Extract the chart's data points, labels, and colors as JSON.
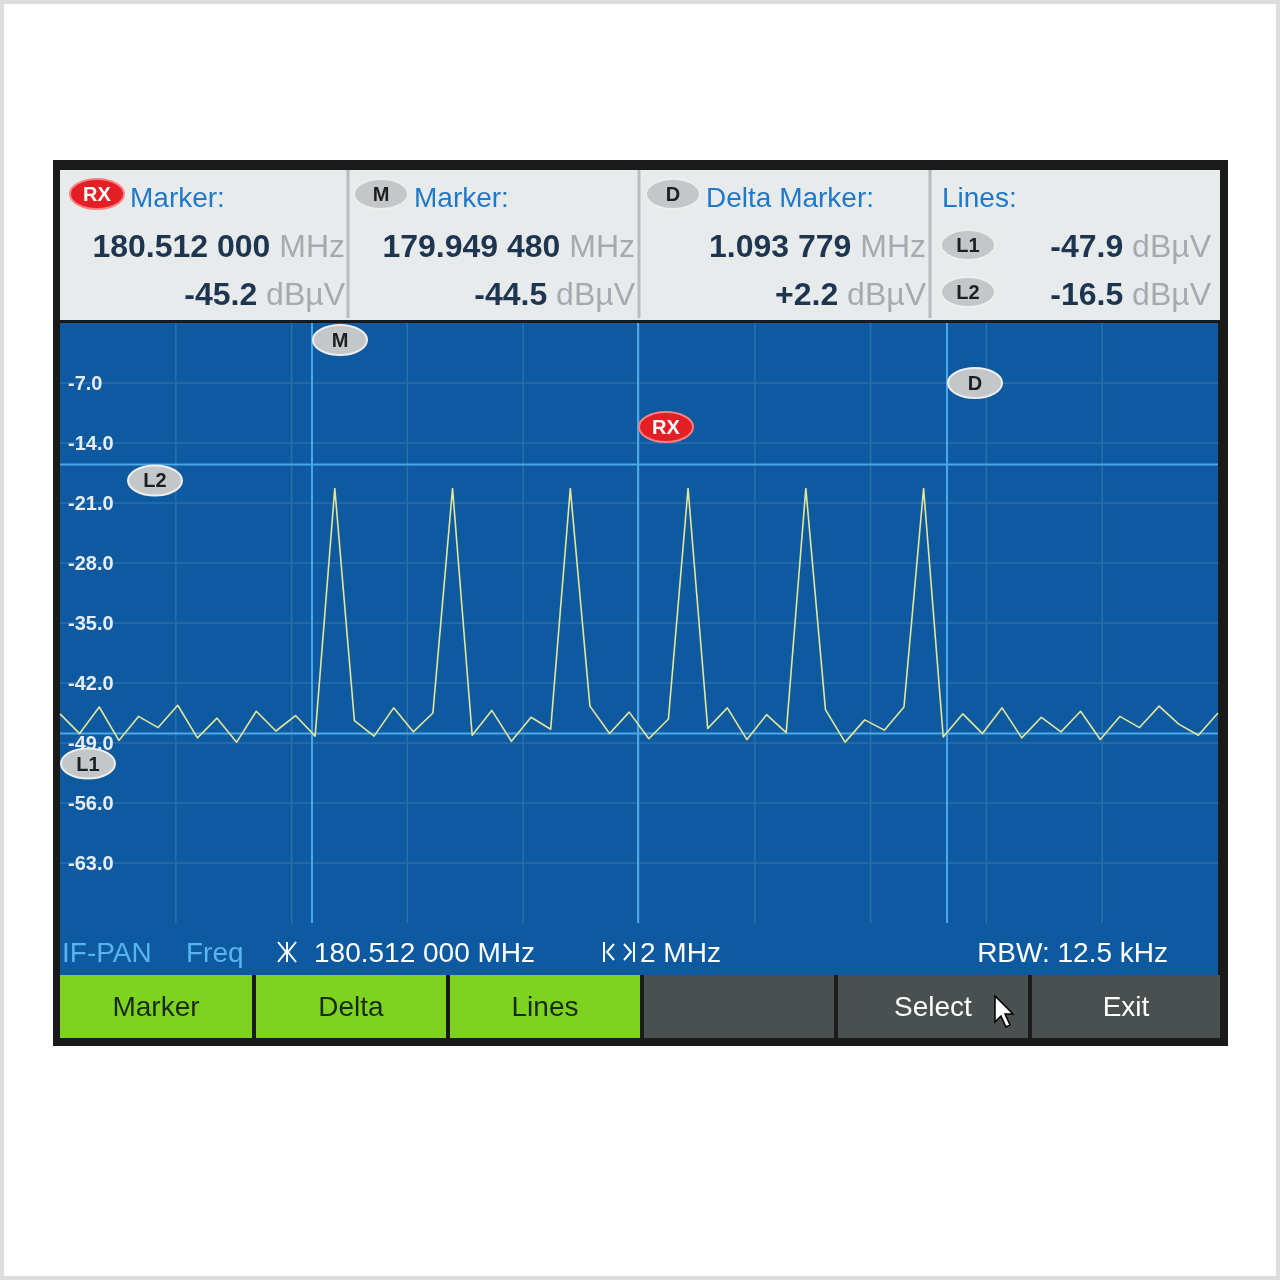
{
  "chart_data": {
    "type": "line",
    "categories": [
      null,
      null,
      null,
      null,
      null,
      null,
      null,
      null,
      null,
      null,
      null,
      null,
      null,
      null,
      null,
      null,
      null,
      null,
      null,
      null,
      null,
      null,
      null,
      null,
      null,
      null,
      null,
      null,
      null,
      null,
      null,
      null,
      null,
      null,
      null,
      null,
      null,
      null,
      null,
      null,
      null,
      null,
      null,
      null,
      null,
      null,
      null,
      null,
      null,
      null,
      null,
      null,
      null,
      null,
      null,
      null,
      null,
      null,
      null,
      null
    ],
    "series": [
      {
        "color": "#e4e69a",
        "values": [
          -45.6,
          -47.9,
          -44.8,
          -48.7,
          -45.9,
          -47.2,
          -44.6,
          -48.4,
          -46.1,
          -48.9,
          -45.3,
          -47.6,
          -45.8,
          -48.2,
          -19.3,
          -46.4,
          -48.2,
          -44.9,
          -47.7,
          -45.5,
          -19.3,
          -48.1,
          -45.2,
          -48.8,
          -46.0,
          -47.4,
          -19.3,
          -44.7,
          -47.9,
          -45.4,
          -48.5,
          -46.2,
          -19.3,
          -47.3,
          -44.9,
          -48.6,
          -45.7,
          -47.8,
          -19.3,
          -45.1,
          -48.9,
          -46.3,
          -47.5,
          -44.8,
          -19.3,
          -48.3,
          -45.6,
          -47.9,
          -44.9,
          -48.4,
          -46.0,
          -47.7,
          -45.3,
          -48.6,
          -45.9,
          -47.2,
          -44.7,
          -46.8,
          -48.1,
          -45.5
        ]
      }
    ],
    "ylim": [
      -70,
      0
    ],
    "yticks": [
      {
        "value": -63,
        "label": "-63.0"
      },
      {
        "value": -56,
        "label": "-56.0"
      },
      {
        "value": -49,
        "label": "-49.0"
      },
      {
        "value": -42,
        "label": "-42.0"
      },
      {
        "value": -35,
        "label": "-35.0"
      },
      {
        "value": -28,
        "label": "-28.0"
      },
      {
        "value": -21,
        "label": "-21.0"
      },
      {
        "value": -14,
        "label": "-14.0"
      },
      {
        "value": -7,
        "label": "-7.0"
      }
    ],
    "tick_labels": "y",
    "grid": true,
    "ref_lines": [
      {
        "axis": "y",
        "value": -47.9,
        "label": "L1",
        "color": "#4aa8e8"
      },
      {
        "axis": "y",
        "value": -16.5,
        "label": "L2",
        "color": "#4aa8e8"
      }
    ],
    "annotations": [
      "RX",
      "Marker:",
      "180.512 000 MHz",
      "-45.2 dBµV",
      "M",
      "Marker:",
      "179.949 480 MHz",
      "-44.5 dBµV",
      "D",
      "Delta Marker:",
      "1.093 779 MHz",
      "+2.2 dBµV",
      "Lines:",
      "L1",
      "-47.9 dBµV",
      "L2",
      "-16.5 dBµV",
      "IF-PAN",
      "Freq",
      "180.512 000 MHz",
      "2 MHz",
      "RBW: 12.5 kHz",
      "Marker",
      "Delta",
      "Lines",
      "Select",
      "Exit",
      "M",
      "RX",
      "D"
    ]
  }
}
